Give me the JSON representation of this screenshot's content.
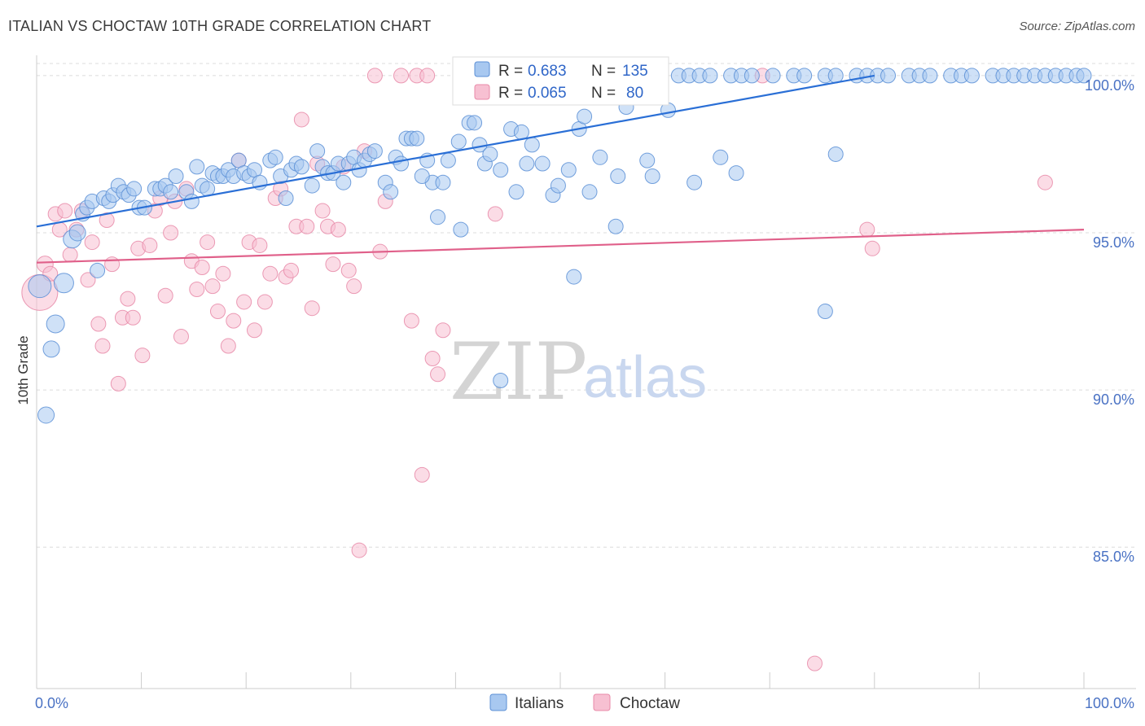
{
  "header": {
    "title": "ITALIAN VS CHOCTAW 10TH GRADE CORRELATION CHART",
    "source": "Source: ZipAtlas.com"
  },
  "colors": {
    "italians_fill": "#a8c8f0",
    "italians_stroke": "#5b8fd6",
    "italians_line": "#2a6fd6",
    "choctaw_fill": "#f7c0d2",
    "choctaw_stroke": "#e88aa8",
    "choctaw_line": "#e0608a",
    "grid": "#dcdcdc",
    "tick_label": "#4a72c4"
  },
  "legend": {
    "r_label": "R =",
    "n_label": "N =",
    "italians": {
      "r": "0.683",
      "n": "135"
    },
    "choctaw": {
      "r": "0.065",
      "n": "80"
    }
  },
  "watermark": {
    "zip": "ZIP",
    "atlas": "atlas"
  },
  "chart_data": {
    "type": "scatter",
    "title": "ITALIAN VS CHOCTAW 10TH GRADE CORRELATION CHART",
    "xlabel": "",
    "ylabel": "10th Grade",
    "xlim": [
      0,
      100
    ],
    "ylim": [
      80.5,
      100.8
    ],
    "x_tick_labels": [
      "0.0%",
      "100.0%"
    ],
    "y_ticks": [
      85,
      90,
      95,
      100
    ],
    "y_tick_labels": [
      "85.0%",
      "90.0%",
      "95.0%",
      "100.0%"
    ],
    "grid": true,
    "legend_position": "top-center",
    "series": [
      {
        "name": "Italians",
        "trend": {
          "x": [
            0,
            80
          ],
          "y": [
            95.2,
            100.0
          ]
        },
        "points": [
          [
            0.3,
            93.3,
            14
          ],
          [
            0.9,
            89.2,
            10
          ],
          [
            1.4,
            91.3,
            10
          ],
          [
            1.8,
            92.1,
            11
          ],
          [
            2.6,
            93.4,
            12
          ],
          [
            3.4,
            94.8,
            11
          ],
          [
            3.9,
            95.0,
            10
          ],
          [
            4.4,
            95.6,
            9
          ],
          [
            4.8,
            95.8,
            9
          ],
          [
            5.8,
            93.8,
            9
          ],
          [
            5.3,
            96.0,
            9
          ],
          [
            6.4,
            96.1,
            9
          ],
          [
            6.9,
            96.0,
            9
          ],
          [
            7.3,
            96.2,
            9
          ],
          [
            7.8,
            96.5,
            9
          ],
          [
            8.3,
            96.3,
            9
          ],
          [
            8.8,
            96.2,
            9
          ],
          [
            9.3,
            96.4,
            9
          ],
          [
            9.8,
            95.8,
            9
          ],
          [
            10.3,
            95.8,
            9
          ],
          [
            11.3,
            96.4,
            9
          ],
          [
            11.8,
            96.4,
            9
          ],
          [
            12.3,
            96.5,
            9
          ],
          [
            12.8,
            96.3,
            9
          ],
          [
            13.3,
            96.8,
            9
          ],
          [
            14.3,
            96.3,
            9
          ],
          [
            14.8,
            96.0,
            9
          ],
          [
            15.3,
            97.1,
            9
          ],
          [
            15.8,
            96.5,
            9
          ],
          [
            16.3,
            96.4,
            9
          ],
          [
            16.8,
            96.9,
            9
          ],
          [
            17.3,
            96.8,
            9
          ],
          [
            17.8,
            96.8,
            9
          ],
          [
            18.3,
            97.0,
            9
          ],
          [
            18.8,
            96.8,
            9
          ],
          [
            19.3,
            97.3,
            9
          ],
          [
            19.8,
            96.9,
            9
          ],
          [
            20.3,
            96.8,
            9
          ],
          [
            20.8,
            97.0,
            9
          ],
          [
            21.3,
            96.6,
            9
          ],
          [
            22.3,
            97.3,
            9
          ],
          [
            22.8,
            97.4,
            9
          ],
          [
            23.3,
            96.8,
            9
          ],
          [
            23.8,
            96.1,
            9
          ],
          [
            24.3,
            97.0,
            9
          ],
          [
            24.8,
            97.2,
            9
          ],
          [
            25.3,
            97.1,
            9
          ],
          [
            26.3,
            96.5,
            9
          ],
          [
            26.8,
            97.6,
            9
          ],
          [
            27.3,
            97.1,
            9
          ],
          [
            27.8,
            96.9,
            9
          ],
          [
            28.3,
            96.9,
            9
          ],
          [
            28.8,
            97.2,
            9
          ],
          [
            29.3,
            96.6,
            9
          ],
          [
            29.8,
            97.2,
            9
          ],
          [
            30.3,
            97.4,
            9
          ],
          [
            30.8,
            97.0,
            9
          ],
          [
            31.3,
            97.3,
            9
          ],
          [
            31.8,
            97.5,
            9
          ],
          [
            32.3,
            97.6,
            9
          ],
          [
            33.3,
            96.6,
            9
          ],
          [
            33.8,
            96.3,
            9
          ],
          [
            34.3,
            97.4,
            9
          ],
          [
            34.8,
            97.2,
            9
          ],
          [
            35.3,
            98.0,
            9
          ],
          [
            35.8,
            98.0,
            9
          ],
          [
            36.3,
            98.0,
            9
          ],
          [
            37.3,
            97.3,
            9
          ],
          [
            37.8,
            96.6,
            9
          ],
          [
            38.3,
            95.5,
            9
          ],
          [
            38.8,
            96.6,
            9
          ],
          [
            39.3,
            97.3,
            9
          ],
          [
            40.3,
            97.9,
            9
          ],
          [
            40.5,
            95.1,
            9
          ],
          [
            41.3,
            98.5,
            9
          ],
          [
            41.8,
            98.5,
            9
          ],
          [
            42.3,
            97.8,
            9
          ],
          [
            42.8,
            97.2,
            9
          ],
          [
            43.3,
            97.5,
            9
          ],
          [
            44.3,
            97.0,
            9
          ],
          [
            44.3,
            90.3,
            9
          ],
          [
            45.3,
            98.3,
            9
          ],
          [
            46.3,
            98.2,
            9
          ],
          [
            46.8,
            97.2,
            9
          ],
          [
            47.3,
            97.8,
            9
          ],
          [
            48.3,
            97.2,
            9
          ],
          [
            49.3,
            96.2,
            9
          ],
          [
            49.8,
            96.5,
            9
          ],
          [
            50.3,
            100.0,
            9
          ],
          [
            50.8,
            97.0,
            9
          ],
          [
            51.3,
            93.6,
            9
          ],
          [
            51.8,
            98.3,
            9
          ],
          [
            52.3,
            98.7,
            9
          ],
          [
            53.3,
            100.0,
            9
          ],
          [
            53.8,
            97.4,
            9
          ],
          [
            54.3,
            100.0,
            9
          ],
          [
            55.3,
            95.2,
            9
          ],
          [
            55.8,
            100.0,
            9
          ],
          [
            56.3,
            99.0,
            9
          ],
          [
            57.3,
            100.0,
            9
          ],
          [
            58.3,
            97.3,
            9
          ],
          [
            59.3,
            100.0,
            9
          ],
          [
            60.3,
            98.9,
            9
          ],
          [
            61.3,
            100.0,
            9
          ],
          [
            62.3,
            100.0,
            9
          ],
          [
            63.3,
            100.0,
            9
          ],
          [
            64.3,
            100.0,
            9
          ],
          [
            65.3,
            97.4,
            9
          ],
          [
            66.3,
            100.0,
            9
          ],
          [
            67.3,
            100.0,
            9
          ],
          [
            68.3,
            100.0,
            9
          ],
          [
            70.3,
            100.0,
            9
          ],
          [
            72.3,
            100.0,
            9
          ],
          [
            73.3,
            100.0,
            9
          ],
          [
            75.3,
            100.0,
            9
          ],
          [
            76.3,
            100.0,
            9
          ],
          [
            78.3,
            100.0,
            9
          ],
          [
            79.3,
            100.0,
            9
          ],
          [
            80.3,
            100.0,
            9
          ],
          [
            81.3,
            100.0,
            9
          ],
          [
            83.3,
            100.0,
            9
          ],
          [
            84.3,
            100.0,
            9
          ],
          [
            85.3,
            100.0,
            9
          ],
          [
            87.3,
            100.0,
            9
          ],
          [
            88.3,
            100.0,
            9
          ],
          [
            89.3,
            100.0,
            9
          ],
          [
            75.3,
            92.5,
            9
          ],
          [
            76.3,
            97.5,
            9
          ],
          [
            91.3,
            100.0,
            9
          ],
          [
            92.3,
            100.0,
            9
          ],
          [
            93.3,
            100.0,
            9
          ],
          [
            94.3,
            100.0,
            9
          ],
          [
            95.3,
            100.0,
            9
          ],
          [
            96.3,
            100.0,
            9
          ],
          [
            97.3,
            100.0,
            9
          ],
          [
            98.3,
            100.0,
            9
          ],
          [
            99.3,
            100.0,
            9
          ],
          [
            100.0,
            100.0,
            9
          ],
          [
            52.8,
            96.3,
            9
          ],
          [
            55.5,
            96.8,
            9
          ],
          [
            36.8,
            96.8,
            9
          ],
          [
            45.8,
            96.3,
            9
          ],
          [
            58.8,
            96.8,
            9
          ],
          [
            62.8,
            96.6,
            9
          ],
          [
            66.8,
            96.9,
            9
          ]
        ]
      },
      {
        "name": "Choctaw",
        "trend": {
          "x": [
            0,
            100
          ],
          "y": [
            94.05,
            95.1
          ]
        },
        "points": [
          [
            0.3,
            93.1,
            22
          ],
          [
            0.8,
            94.0,
            10
          ],
          [
            1.3,
            93.7,
            9
          ],
          [
            1.8,
            95.6,
            9
          ],
          [
            2.2,
            95.1,
            9
          ],
          [
            2.7,
            95.7,
            9
          ],
          [
            3.2,
            94.3,
            9
          ],
          [
            3.8,
            95.1,
            9
          ],
          [
            4.3,
            95.7,
            9
          ],
          [
            4.9,
            93.5,
            9
          ],
          [
            5.3,
            94.7,
            9
          ],
          [
            5.9,
            92.1,
            9
          ],
          [
            6.3,
            91.4,
            9
          ],
          [
            6.7,
            95.4,
            9
          ],
          [
            7.2,
            94.0,
            9
          ],
          [
            7.8,
            90.2,
            9
          ],
          [
            8.2,
            92.3,
            9
          ],
          [
            8.7,
            92.9,
            9
          ],
          [
            9.2,
            92.3,
            9
          ],
          [
            9.7,
            94.5,
            9
          ],
          [
            10.1,
            91.1,
            9
          ],
          [
            10.8,
            94.6,
            9
          ],
          [
            11.3,
            95.7,
            9
          ],
          [
            11.8,
            96.1,
            9
          ],
          [
            12.3,
            93.0,
            9
          ],
          [
            12.8,
            95.0,
            9
          ],
          [
            13.2,
            96.0,
            9
          ],
          [
            13.8,
            91.7,
            9
          ],
          [
            14.3,
            96.4,
            9
          ],
          [
            14.8,
            94.1,
            9
          ],
          [
            15.3,
            93.2,
            9
          ],
          [
            15.8,
            93.9,
            9
          ],
          [
            16.3,
            94.7,
            9
          ],
          [
            16.8,
            93.3,
            9
          ],
          [
            17.3,
            92.5,
            9
          ],
          [
            17.8,
            93.7,
            9
          ],
          [
            18.3,
            91.4,
            9
          ],
          [
            18.8,
            92.2,
            9
          ],
          [
            19.3,
            97.3,
            9
          ],
          [
            19.8,
            92.8,
            9
          ],
          [
            20.3,
            94.7,
            9
          ],
          [
            20.8,
            91.9,
            9
          ],
          [
            21.3,
            94.6,
            9
          ],
          [
            21.8,
            92.8,
            9
          ],
          [
            22.3,
            93.7,
            9
          ],
          [
            22.8,
            96.1,
            9
          ],
          [
            23.3,
            96.4,
            9
          ],
          [
            23.8,
            93.6,
            9
          ],
          [
            24.3,
            93.8,
            9
          ],
          [
            24.8,
            95.2,
            9
          ],
          [
            25.3,
            98.6,
            9
          ],
          [
            25.8,
            95.2,
            9
          ],
          [
            26.3,
            92.6,
            9
          ],
          [
            26.8,
            97.2,
            9
          ],
          [
            27.3,
            95.7,
            9
          ],
          [
            27.8,
            95.2,
            9
          ],
          [
            28.3,
            94.0,
            9
          ],
          [
            28.8,
            95.1,
            9
          ],
          [
            29.3,
            97.1,
            9
          ],
          [
            29.8,
            93.8,
            9
          ],
          [
            30.3,
            93.3,
            9
          ],
          [
            30.8,
            84.9,
            9
          ],
          [
            31.3,
            97.6,
            9
          ],
          [
            32.3,
            100.0,
            9
          ],
          [
            32.8,
            94.4,
            9
          ],
          [
            33.3,
            96.0,
            9
          ],
          [
            34.8,
            100.0,
            9
          ],
          [
            35.8,
            92.2,
            9
          ],
          [
            36.3,
            100.0,
            9
          ],
          [
            36.8,
            87.3,
            9
          ],
          [
            37.3,
            100.0,
            9
          ],
          [
            37.8,
            91.0,
            9
          ],
          [
            38.3,
            90.5,
            9
          ],
          [
            38.8,
            91.9,
            9
          ],
          [
            43.3,
            100.0,
            9
          ],
          [
            43.8,
            95.6,
            9
          ],
          [
            69.3,
            100.0,
            9
          ],
          [
            74.3,
            81.3,
            9
          ],
          [
            79.3,
            95.1,
            9
          ],
          [
            79.8,
            94.5,
            9
          ],
          [
            96.3,
            96.6,
            9
          ]
        ]
      }
    ]
  }
}
